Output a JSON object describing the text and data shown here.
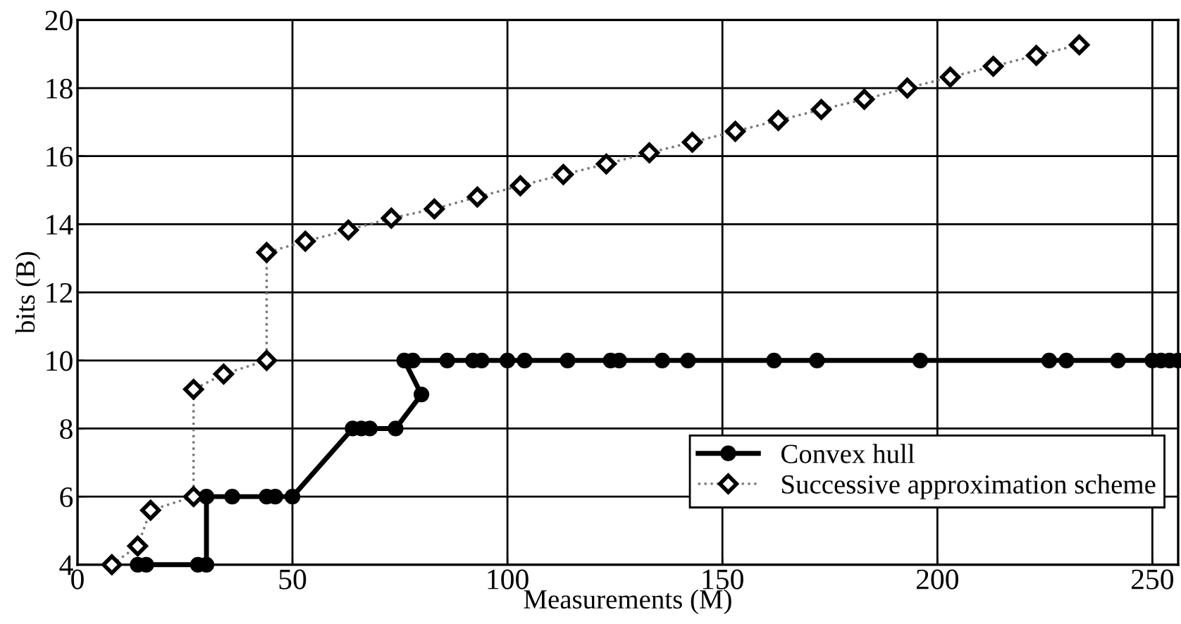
{
  "chart_data": {
    "type": "line",
    "xlabel": "Measurements (M)",
    "ylabel": "bits (B)",
    "xlim": [
      0,
      256
    ],
    "xticks": [
      0,
      50,
      100,
      150,
      200,
      250
    ],
    "ylim": [
      4,
      20
    ],
    "yticks": [
      4,
      6,
      8,
      10,
      12,
      14,
      16,
      18,
      20
    ],
    "grid": true,
    "legend": "bottom right",
    "series": [
      {
        "name": "Convex hull",
        "color": "#000000",
        "marker": "circle",
        "line_style": "solid",
        "x": [
          14,
          16,
          28,
          30,
          30,
          36,
          44,
          46,
          50,
          64,
          66,
          68,
          74,
          80,
          76,
          78,
          86,
          92,
          94,
          100,
          104,
          114,
          124,
          126,
          136,
          142,
          162,
          172,
          196,
          226,
          230,
          242,
          250,
          252,
          254,
          256
        ],
        "values": [
          4,
          4,
          4,
          4,
          6,
          6,
          6,
          6,
          6,
          8,
          8,
          8,
          8,
          9,
          10,
          10,
          10,
          10,
          10,
          10,
          10,
          10,
          10,
          10,
          10,
          10,
          10,
          10,
          10,
          10,
          10,
          10,
          10,
          10,
          10,
          10
        ]
      },
      {
        "name": "Successive approximation scheme",
        "color": "#000000",
        "marker": "diamond",
        "line_style": "dotted",
        "x": [
          8,
          14,
          17,
          27,
          27,
          34,
          44,
          44,
          53,
          63,
          73,
          83,
          93,
          103,
          113,
          123,
          133,
          143,
          153,
          163,
          173,
          183,
          193,
          203,
          213,
          223,
          233
        ],
        "values": [
          4,
          4.55,
          5.6,
          6,
          9.15,
          9.6,
          10,
          13.17,
          13.5,
          13.83,
          14.18,
          14.45,
          14.8,
          15.13,
          15.46,
          15.77,
          16.1,
          16.41,
          16.73,
          17.05,
          17.37,
          17.67,
          18,
          18.32,
          18.64,
          18.96,
          19.27
        ]
      }
    ]
  }
}
